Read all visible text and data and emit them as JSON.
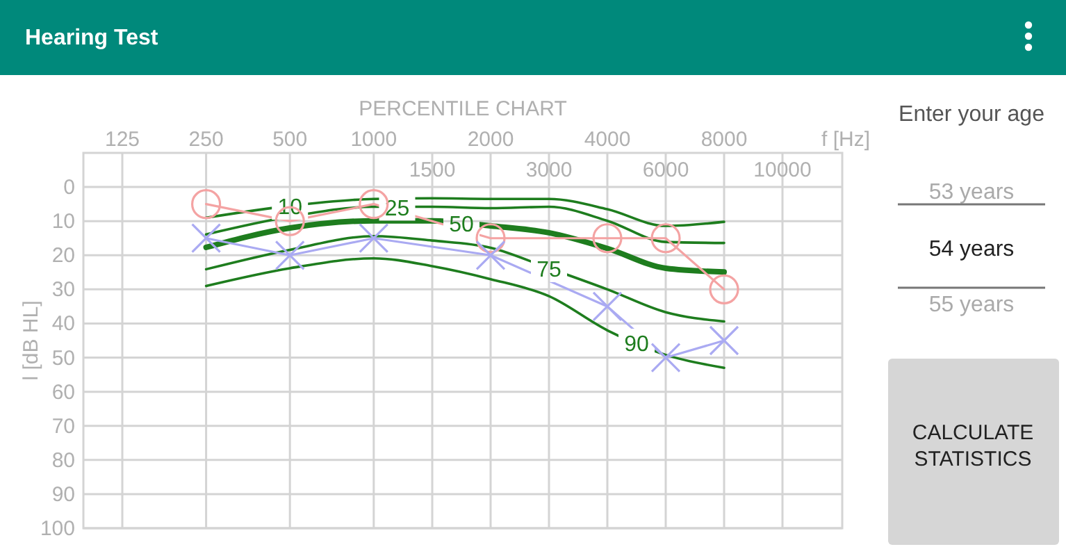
{
  "chart_data": {
    "type": "line",
    "title": "PERCENTILE CHART",
    "xlabel": "f [Hz]",
    "ylabel": "l [dB HL]",
    "categories": [
      "125",
      "250",
      "500",
      "1000",
      "1500",
      "2000",
      "3000",
      "4000",
      "6000",
      "8000",
      "10000"
    ],
    "ylim": [
      100,
      -10
    ],
    "yticks": [
      0,
      10,
      20,
      30,
      40,
      50,
      60,
      70,
      80,
      90,
      100
    ],
    "grid": true,
    "series": [
      {
        "name": "10",
        "color": "#1e7d1e",
        "values": [
          null,
          9,
          5.5,
          3.5,
          3.3,
          3.5,
          3.5,
          6.5,
          11.4,
          10.2,
          null
        ]
      },
      {
        "name": "25",
        "color": "#1e7d1e",
        "values": [
          null,
          13.9,
          8.7,
          5.8,
          5.8,
          6.2,
          5.8,
          9.9,
          16.1,
          16.4,
          null
        ]
      },
      {
        "name": "50",
        "color": "#1e7d1e",
        "values": [
          null,
          17.7,
          12,
          9.9,
          9.9,
          11.4,
          13.4,
          18,
          23.8,
          24.9,
          null
        ]
      },
      {
        "name": "75",
        "color": "#1e7d1e",
        "values": [
          null,
          24.1,
          18.4,
          14.4,
          15.7,
          17.8,
          23.8,
          30,
          36.7,
          39.4,
          null
        ]
      },
      {
        "name": "90",
        "color": "#1e7d1e",
        "values": [
          null,
          29,
          23.8,
          20.9,
          23.2,
          27,
          32,
          42,
          49.2,
          53,
          null
        ]
      },
      {
        "color": "#f4a3a3",
        "marker": "circle",
        "values": [
          null,
          5,
          10,
          5,
          null,
          15,
          null,
          15,
          15,
          30,
          null
        ]
      },
      {
        "color": "#aaaaf2",
        "marker": "cross",
        "values": [
          null,
          15,
          20,
          15,
          null,
          20,
          null,
          35,
          50,
          45,
          null
        ]
      }
    ],
    "annotations": [
      "Hearing Test",
      "Enter your age",
      "53 years",
      "54 years",
      "55 years",
      "CALCULATE STATISTICS"
    ]
  }
}
